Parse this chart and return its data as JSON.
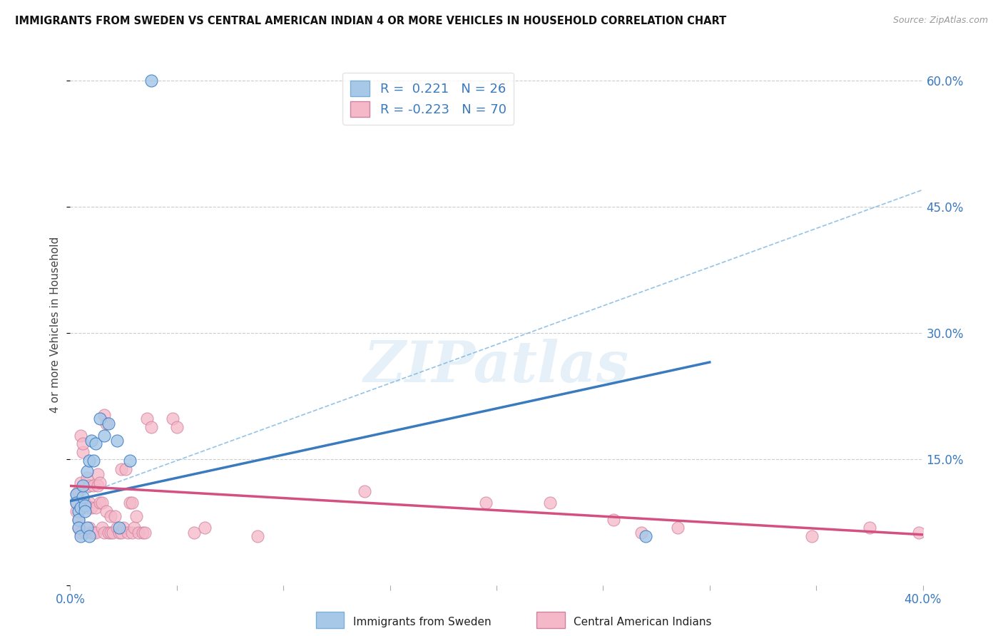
{
  "title": "IMMIGRANTS FROM SWEDEN VS CENTRAL AMERICAN INDIAN 4 OR MORE VEHICLES IN HOUSEHOLD CORRELATION CHART",
  "source": "Source: ZipAtlas.com",
  "ylabel": "4 or more Vehicles in Household",
  "xlim": [
    0.0,
    0.4
  ],
  "ylim": [
    0.0,
    0.62
  ],
  "xticks": [
    0.0,
    0.05,
    0.1,
    0.15,
    0.2,
    0.25,
    0.3,
    0.35,
    0.4
  ],
  "xticklabels": [
    "0.0%",
    "",
    "",
    "",
    "",
    "",
    "",
    "",
    "40.0%"
  ],
  "ytick_positions": [
    0.0,
    0.15,
    0.3,
    0.45,
    0.6
  ],
  "ytick_labels_right": [
    "",
    "15.0%",
    "30.0%",
    "45.0%",
    "60.0%"
  ],
  "watermark": "ZIPatlas",
  "legend_r1": "R =  0.221",
  "legend_n1": "N = 26",
  "legend_r2": "R = -0.223",
  "legend_n2": "N = 70",
  "blue_color": "#a8c8e8",
  "pink_color": "#f4b8c8",
  "blue_line_color": "#3a7abf",
  "pink_line_color": "#d45080",
  "blue_scatter": [
    [
      0.003,
      0.108
    ],
    [
      0.003,
      0.098
    ],
    [
      0.004,
      0.088
    ],
    [
      0.004,
      0.078
    ],
    [
      0.004,
      0.068
    ],
    [
      0.005,
      0.058
    ],
    [
      0.005,
      0.092
    ],
    [
      0.006,
      0.105
    ],
    [
      0.006,
      0.118
    ],
    [
      0.007,
      0.095
    ],
    [
      0.007,
      0.088
    ],
    [
      0.008,
      0.135
    ],
    [
      0.008,
      0.068
    ],
    [
      0.009,
      0.058
    ],
    [
      0.009,
      0.148
    ],
    [
      0.01,
      0.172
    ],
    [
      0.011,
      0.148
    ],
    [
      0.012,
      0.168
    ],
    [
      0.014,
      0.198
    ],
    [
      0.016,
      0.178
    ],
    [
      0.018,
      0.192
    ],
    [
      0.022,
      0.172
    ],
    [
      0.023,
      0.068
    ],
    [
      0.028,
      0.148
    ],
    [
      0.27,
      0.058
    ],
    [
      0.038,
      0.6
    ]
  ],
  "pink_scatter": [
    [
      0.003,
      0.108
    ],
    [
      0.003,
      0.098
    ],
    [
      0.003,
      0.088
    ],
    [
      0.004,
      0.078
    ],
    [
      0.004,
      0.068
    ],
    [
      0.004,
      0.112
    ],
    [
      0.005,
      0.122
    ],
    [
      0.005,
      0.062
    ],
    [
      0.005,
      0.178
    ],
    [
      0.006,
      0.158
    ],
    [
      0.006,
      0.168
    ],
    [
      0.007,
      0.062
    ],
    [
      0.007,
      0.098
    ],
    [
      0.008,
      0.128
    ],
    [
      0.008,
      0.092
    ],
    [
      0.009,
      0.098
    ],
    [
      0.009,
      0.118
    ],
    [
      0.009,
      0.068
    ],
    [
      0.01,
      0.062
    ],
    [
      0.01,
      0.092
    ],
    [
      0.011,
      0.118
    ],
    [
      0.011,
      0.062
    ],
    [
      0.012,
      0.092
    ],
    [
      0.012,
      0.062
    ],
    [
      0.013,
      0.132
    ],
    [
      0.013,
      0.118
    ],
    [
      0.014,
      0.098
    ],
    [
      0.014,
      0.122
    ],
    [
      0.015,
      0.098
    ],
    [
      0.015,
      0.068
    ],
    [
      0.016,
      0.062
    ],
    [
      0.016,
      0.202
    ],
    [
      0.017,
      0.088
    ],
    [
      0.017,
      0.192
    ],
    [
      0.018,
      0.062
    ],
    [
      0.019,
      0.062
    ],
    [
      0.019,
      0.082
    ],
    [
      0.02,
      0.062
    ],
    [
      0.021,
      0.082
    ],
    [
      0.022,
      0.068
    ],
    [
      0.023,
      0.062
    ],
    [
      0.024,
      0.062
    ],
    [
      0.024,
      0.138
    ],
    [
      0.025,
      0.068
    ],
    [
      0.026,
      0.138
    ],
    [
      0.027,
      0.062
    ],
    [
      0.028,
      0.098
    ],
    [
      0.029,
      0.098
    ],
    [
      0.029,
      0.062
    ],
    [
      0.03,
      0.068
    ],
    [
      0.031,
      0.082
    ],
    [
      0.032,
      0.062
    ],
    [
      0.034,
      0.062
    ],
    [
      0.035,
      0.062
    ],
    [
      0.036,
      0.198
    ],
    [
      0.038,
      0.188
    ],
    [
      0.048,
      0.198
    ],
    [
      0.05,
      0.188
    ],
    [
      0.058,
      0.062
    ],
    [
      0.063,
      0.068
    ],
    [
      0.088,
      0.058
    ],
    [
      0.138,
      0.112
    ],
    [
      0.195,
      0.098
    ],
    [
      0.225,
      0.098
    ],
    [
      0.255,
      0.078
    ],
    [
      0.268,
      0.062
    ],
    [
      0.285,
      0.068
    ],
    [
      0.348,
      0.058
    ],
    [
      0.375,
      0.068
    ],
    [
      0.398,
      0.062
    ]
  ],
  "blue_trend_x": [
    0.0,
    0.3
  ],
  "blue_trend_y": [
    0.1,
    0.265
  ],
  "pink_trend_x": [
    0.0,
    0.4
  ],
  "pink_trend_y": [
    0.118,
    0.06
  ],
  "dashed_line_x": [
    0.0,
    0.4
  ],
  "dashed_line_y": [
    0.102,
    0.47
  ],
  "dashed_color": "#7ab4e0"
}
